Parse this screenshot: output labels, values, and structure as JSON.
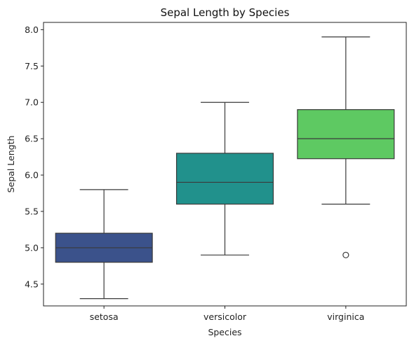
{
  "chart_data": {
    "type": "box",
    "title": "Sepal Length by Species",
    "xlabel": "Species",
    "ylabel": "Sepal Length",
    "ylim": [
      4.2,
      8.1
    ],
    "yticks": [
      "4.5",
      "5.0",
      "5.5",
      "6.0",
      "6.5",
      "7.0",
      "7.5",
      "8.0"
    ],
    "grid": false,
    "categories": [
      "setosa",
      "versicolor",
      "virginica"
    ],
    "boxes": [
      {
        "category": "setosa",
        "whisker_low": 4.3,
        "q1": 4.8,
        "median": 5.0,
        "q3": 5.2,
        "whisker_high": 5.8,
        "outliers": [],
        "color": "#3b528b"
      },
      {
        "category": "versicolor",
        "whisker_low": 4.9,
        "q1": 5.6,
        "median": 5.9,
        "q3": 6.3,
        "whisker_high": 7.0,
        "outliers": [],
        "color": "#21918c"
      },
      {
        "category": "virginica",
        "whisker_low": 5.6,
        "q1": 6.225,
        "median": 6.5,
        "q3": 6.9,
        "whisker_high": 7.9,
        "outliers": [
          4.9
        ],
        "color": "#5ec962"
      }
    ]
  }
}
